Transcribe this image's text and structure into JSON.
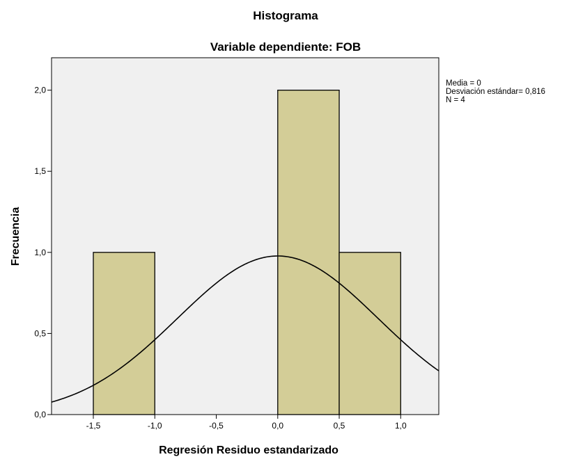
{
  "chart_data": {
    "type": "bar",
    "title": "Histograma",
    "subtitle": "Variable dependiente: FOB",
    "xlabel": "Regresión Residuo estandarizado",
    "ylabel": "Frecuencia",
    "bins": [
      {
        "x0": -1.5,
        "x1": -1.0,
        "count": 1
      },
      {
        "x0": -1.0,
        "x1": -0.5,
        "count": 0
      },
      {
        "x0": -0.5,
        "x1": 0.0,
        "count": 0
      },
      {
        "x0": 0.0,
        "x1": 0.5,
        "count": 2
      },
      {
        "x0": 0.5,
        "x1": 1.0,
        "count": 1
      }
    ],
    "xlim": [
      -1.84,
      1.31
    ],
    "ylim": [
      0,
      2.2
    ],
    "xticks": [
      -1.5,
      -1.0,
      -0.5,
      0.0,
      0.5,
      1.0
    ],
    "xtick_labels": [
      "-1,5",
      "-1,0",
      "-0,5",
      "0,0",
      "0,5",
      "1,0"
    ],
    "yticks": [
      0,
      0.5,
      1.0,
      1.5,
      2.0
    ],
    "ytick_labels": [
      "0,0",
      "0,5",
      "1,0",
      "1,5",
      "2,0"
    ],
    "normal_curve": {
      "mean": 0,
      "sd": 0.816,
      "n": 4,
      "bin_width": 0.5
    },
    "stats_lines": [
      "Media = 0",
      "Desviación estándar= 0,816",
      "N = 4"
    ],
    "colors": {
      "bar_fill": "#d3cd97",
      "plot_background": "#f0f0f0",
      "curve": "#000000"
    }
  }
}
